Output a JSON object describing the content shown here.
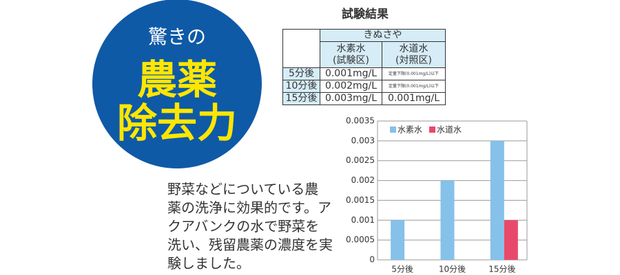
{
  "badge": {
    "line1": "驚きの",
    "line2": "農薬",
    "line3": "除去力"
  },
  "table": {
    "title": "試験結果",
    "header": "きぬさや",
    "columns": [
      "水素水\n(試験区)",
      "水道水\n(対照区)"
    ],
    "rows": [
      [
        "5分後",
        "0.001mg/L",
        "定量下限(0.001mg/L)以下"
      ],
      [
        "10分後",
        "0.002mg/L",
        "定量下限(0.001mg/L)以下"
      ],
      [
        "15分後",
        "0.003mg/L",
        "0.001mg/L"
      ]
    ]
  },
  "description": {
    "lines": [
      "野菜などについている農",
      "薬の洗浄に効果的です。ア",
      "クアバンクの水で野菜を",
      "洗い、残留農薬の濃度を実",
      "験しました。"
    ]
  },
  "chart_data": {
    "type": "bar",
    "categories": [
      "5分後",
      "10分後",
      "15分後"
    ],
    "series": [
      {
        "name": "水素水",
        "color": "#85c1e9",
        "values": [
          0.001,
          0.002,
          0.003
        ]
      },
      {
        "name": "水道水",
        "color": "#e8496a",
        "values": [
          null,
          null,
          0.001
        ]
      }
    ],
    "ylim": [
      0,
      0.0035
    ],
    "yticks": [
      0,
      0.0005,
      0.001,
      0.0015,
      0.002,
      0.0025,
      0.003,
      0.0035
    ],
    "grid": true,
    "legend": "top-left"
  }
}
